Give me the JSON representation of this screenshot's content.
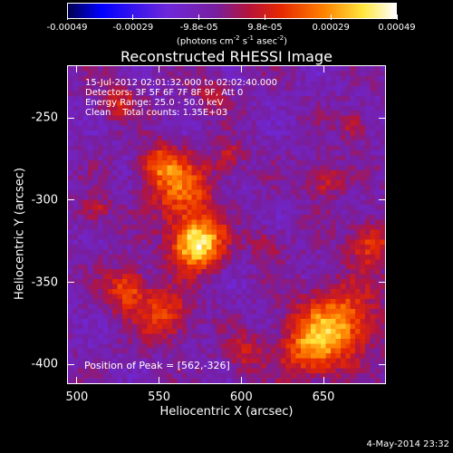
{
  "colorbar": {
    "tick_labels": [
      "-0.00049",
      "-0.00029",
      "-9.8e-05",
      "9.8e-05",
      "0.00029",
      "0.00049"
    ],
    "units_html": "(photons cm<sup>-2</sup> s<sup>-1</sup> asec<sup>-2</sup>)",
    "colormap": "rhessi (blue-purple-red-yellow-white)"
  },
  "title": "Reconstructed RHESSI Image",
  "info": {
    "line1": "15-Jul-2012 02:01:32.000 to 02:02:40.000",
    "line2": "Detectors: 3F 5F 6F 7F 8F 9F, Att 0",
    "line3": "Energy Range: 25.0 - 50.0 keV",
    "line4": "Clean    Total counts: 1.35E+03"
  },
  "peak_label": "Position of Peak = [562,-326]",
  "axes": {
    "xlabel": "Heliocentric X (arcsec)",
    "ylabel": "Heliocentric Y (arcsec)",
    "xticks": [
      "500",
      "550",
      "600",
      "650"
    ],
    "xtick_values": [
      500,
      550,
      600,
      650
    ],
    "yticks": [
      "-250",
      "-300",
      "-350",
      "-400"
    ],
    "ytick_values": [
      -250,
      -300,
      -350,
      -400
    ],
    "xlim": [
      494,
      688
    ],
    "ylim": [
      -412,
      -218
    ]
  },
  "timestamp": "4-May-2014 23:32"
}
